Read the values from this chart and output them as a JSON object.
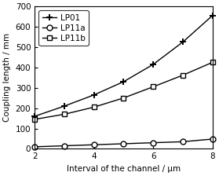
{
  "x": [
    2,
    3,
    4,
    5,
    6,
    7,
    8
  ],
  "LP01": [
    160,
    210,
    265,
    330,
    415,
    525,
    655
  ],
  "LP11a": [
    10,
    15,
    20,
    25,
    30,
    35,
    48
  ],
  "LP11b": [
    145,
    170,
    205,
    250,
    305,
    362,
    425
  ],
  "xlabel": "Interval of the channel / μm",
  "ylabel": "Coupling length / mm",
  "ylim": [
    0,
    700
  ],
  "xlim": [
    2,
    8
  ],
  "yticks": [
    0,
    100,
    200,
    300,
    400,
    500,
    600,
    700
  ],
  "xticks": [
    2,
    4,
    6,
    8
  ],
  "legend_labels": [
    "LP01",
    "LP11a",
    "LP11b"
  ],
  "line_color": "#000000",
  "background_color": "#ffffff",
  "legend_fontsize": 7.5,
  "axis_fontsize": 7.5,
  "tick_fontsize": 7.5,
  "linewidth": 1.0,
  "marker_size_plus": 6,
  "marker_size_circle": 5,
  "marker_size_square": 5
}
